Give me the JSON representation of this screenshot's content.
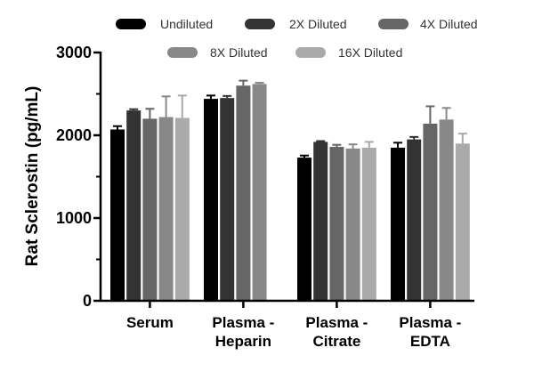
{
  "chart_data": {
    "type": "bar",
    "title": "",
    "xlabel": "",
    "ylabel": "Rat  Sclerostin (pg/mL)",
    "ylim": [
      0,
      3000
    ],
    "yticks": [
      0,
      1000,
      2000,
      3000
    ],
    "grid": false,
    "legend_position": "top",
    "categories": [
      [
        "Serum"
      ],
      [
        "Plasma -",
        "Heparin"
      ],
      [
        "Plasma -",
        "Citrate"
      ],
      [
        "Plasma -",
        "EDTA"
      ]
    ],
    "series": [
      {
        "name": "Undiluted",
        "color": "#000000",
        "values": [
          2070,
          2440,
          1730,
          1850
        ],
        "errors": [
          40,
          40,
          25,
          60
        ]
      },
      {
        "name": "2X Diluted",
        "color": "#333333",
        "values": [
          2300,
          2450,
          1920,
          1950
        ],
        "errors": [
          15,
          25,
          10,
          30
        ]
      },
      {
        "name": "4X Diluted",
        "color": "#666666",
        "values": [
          2200,
          2600,
          1860,
          2140
        ],
        "errors": [
          120,
          60,
          25,
          210
        ]
      },
      {
        "name": "8X Diluted",
        "color": "#888888",
        "values": [
          2220,
          2620,
          1840,
          2190
        ],
        "errors": [
          250,
          15,
          50,
          140
        ]
      },
      {
        "name": "16X Diluted",
        "color": "#aaaaaa",
        "values": [
          2210,
          0,
          1850,
          1900
        ],
        "errors": [
          270,
          0,
          70,
          120
        ]
      }
    ]
  }
}
